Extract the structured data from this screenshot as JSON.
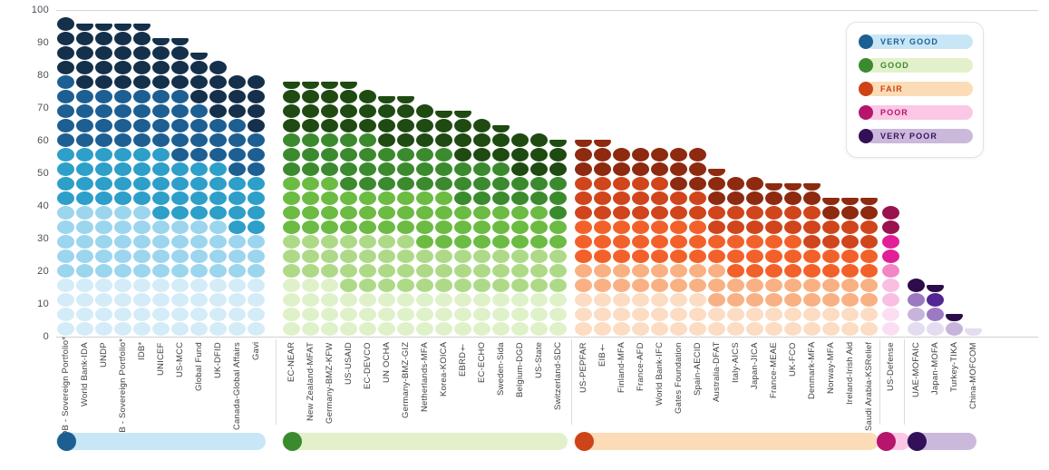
{
  "y_axis": {
    "ticks": [
      0,
      10,
      20,
      30,
      40,
      50,
      60,
      70,
      80,
      90,
      100
    ]
  },
  "legend": {
    "items": [
      {
        "label": "VERY GOOD",
        "dot_color": "#1d5f92",
        "pill_color": "#c9e6f6",
        "text_color": "#1d5f92"
      },
      {
        "label": "GOOD",
        "dot_color": "#3b8b2e",
        "pill_color": "#e2f1cb",
        "text_color": "#3b8b2e"
      },
      {
        "label": "FAIR",
        "dot_color": "#cc4418",
        "pill_color": "#fbdcb6",
        "text_color": "#cc4418"
      },
      {
        "label": "POOR",
        "dot_color": "#b5156b",
        "pill_color": "#fbc7e5",
        "text_color": "#b5156b"
      },
      {
        "label": "VERY POOR",
        "dot_color": "#331058",
        "pill_color": "#cbb9dc",
        "text_color": "#38135e"
      }
    ]
  },
  "chart_data": {
    "type": "bar",
    "subtype": "stacked-dot columns (aid transparency scores by organisation, grouped by rating)",
    "ylim": [
      0,
      100
    ],
    "y_ticks": [
      0,
      10,
      20,
      30,
      40,
      50,
      60,
      70,
      80,
      90,
      100
    ],
    "legend_position": "top-right",
    "grid": "top and bottom border lines only",
    "groups": [
      {
        "rating": "VERY GOOD",
        "accent": "#1d5f92",
        "band": "#c9e6f6",
        "shades": [
          "#d3ecf8",
          "#9cd5ee",
          "#2d9fc9",
          "#1d5f92",
          "#14304a"
        ],
        "orgs": [
          {
            "name": "AsDB - Sovereign Portfolio*",
            "score": 98
          },
          {
            "name": "World Bank-IDA",
            "score": 97
          },
          {
            "name": "UNDP",
            "score": 96.5
          },
          {
            "name": "AfDB - Sovereign Portfolio*",
            "score": 95.5
          },
          {
            "name": "IDB*",
            "score": 95
          },
          {
            "name": "UNICEF",
            "score": 93
          },
          {
            "name": "US-MCC",
            "score": 92.5
          },
          {
            "name": "Global Fund",
            "score": 87
          },
          {
            "name": "UK-DFID",
            "score": 85.5
          },
          {
            "name": "Canada-Global Affairs",
            "score": 81
          },
          {
            "name": "Gavi",
            "score": 80.5
          }
        ]
      },
      {
        "rating": "GOOD",
        "accent": "#3b8b2e",
        "band": "#e2f1cb",
        "shades": [
          "#dff1c9",
          "#aeda88",
          "#6cbb43",
          "#3b8b2e",
          "#1f4a12"
        ],
        "orgs": [
          {
            "name": "EC-NEAR",
            "score": 79
          },
          {
            "name": "New Zealand-MFAT",
            "score": 78.5
          },
          {
            "name": "Germany-BMZ-KFW",
            "score": 78
          },
          {
            "name": "US-USAID",
            "score": 77
          },
          {
            "name": "EC-DEVCO",
            "score": 76.5
          },
          {
            "name": "UN OCHA",
            "score": 74.5
          },
          {
            "name": "Germany-BMZ-GIZ",
            "score": 73
          },
          {
            "name": "Netherlands-MFA",
            "score": 72
          },
          {
            "name": "Korea-KOICA",
            "score": 71
          },
          {
            "name": "EBRD†",
            "score": 69
          },
          {
            "name": "EC-ECHO",
            "score": 68
          },
          {
            "name": "Sweden-Sida",
            "score": 64
          },
          {
            "name": "Belgium-DGD",
            "score": 63.5
          },
          {
            "name": "US-State",
            "score": 63
          },
          {
            "name": "Switzerland-SDC",
            "score": 61.5
          }
        ]
      },
      {
        "rating": "FAIR",
        "accent": "#cc4418",
        "band": "#fbdcb6",
        "shades": [
          "#fcdcc2",
          "#f9b183",
          "#f3612a",
          "#d0451c",
          "#8e2a10"
        ],
        "orgs": [
          {
            "name": "US-PEPFAR",
            "score": 60
          },
          {
            "name": "EIB†",
            "score": 59.5
          },
          {
            "name": "Finland-MFA",
            "score": 59
          },
          {
            "name": "France-AFD",
            "score": 58.5
          },
          {
            "name": "World Bank-IFC",
            "score": 58.5
          },
          {
            "name": "Gates Foundation",
            "score": 58
          },
          {
            "name": "Spain-AECID",
            "score": 58
          },
          {
            "name": "Australia-DFAT",
            "score": 52.5
          },
          {
            "name": "Italy-AICS",
            "score": 50
          },
          {
            "name": "Japan-JICA",
            "score": 49
          },
          {
            "name": "France-MEAE",
            "score": 48.5
          },
          {
            "name": "UK-FCO",
            "score": 48.5
          },
          {
            "name": "Denmark-MFA",
            "score": 48
          },
          {
            "name": "Norway-MFA",
            "score": 44
          },
          {
            "name": "Ireland-Irish Aid",
            "score": 43
          },
          {
            "name": "Saudi Arabia-KSRelief",
            "score": 42
          }
        ]
      },
      {
        "rating": "POOR",
        "accent": "#b5156b",
        "band": "#fbc7e5",
        "shades": [
          "#fbdef1",
          "#f8bfe3",
          "#f287c8",
          "#e21f97",
          "#99134f"
        ],
        "orgs": [
          {
            "name": "US-Defense",
            "score": 40
          }
        ]
      },
      {
        "rating": "VERY POOR",
        "accent": "#331058",
        "band": "#cbb9dc",
        "shades": [
          "#e4dcef",
          "#c7b4db",
          "#9b7ac2",
          "#522693",
          "#2c0d49"
        ],
        "orgs": [
          {
            "name": "UAE-MOFAIC",
            "score": 19
          },
          {
            "name": "Japan-MOFA",
            "score": 16.5
          },
          {
            "name": "Turkey-TIKA",
            "score": 7
          },
          {
            "name": "China-MOFCOM",
            "score": 2
          }
        ]
      }
    ]
  }
}
